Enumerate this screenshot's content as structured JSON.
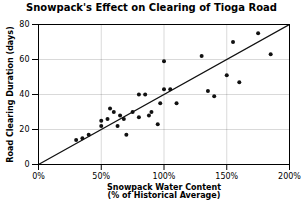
{
  "chart_data": {
    "type": "scatter",
    "title": "Snowpack's Effect on Clearing of Tioga Road",
    "xlabel": "Snowpack Water Content\n(% of Historical Average)",
    "ylabel": "Road Clearing Duration (days)",
    "series": [
      {
        "type": "scatter",
        "color": "#111111",
        "x": [
          30,
          35,
          40,
          50,
          50,
          55,
          57,
          60,
          63,
          65,
          68,
          70,
          75,
          80,
          80,
          85,
          88,
          90,
          95,
          97,
          100,
          100,
          105,
          110,
          130,
          135,
          140,
          150,
          155,
          160,
          175,
          185
        ],
        "values": [
          14,
          15,
          17,
          22,
          25,
          26,
          32,
          30,
          22,
          28,
          26,
          17,
          30,
          27,
          40,
          40,
          28,
          30,
          23,
          35,
          59,
          43,
          43,
          35,
          62,
          42,
          39,
          51,
          70,
          47,
          75,
          63
        ]
      },
      {
        "type": "line",
        "color": "#111111",
        "x": [
          0,
          200
        ],
        "values": [
          0,
          80
        ]
      }
    ],
    "xlim": [
      0,
      200
    ],
    "ylim": [
      0,
      80
    ],
    "xticks": [
      {
        "value": 0,
        "label": "0%"
      },
      {
        "value": 50,
        "label": "50%"
      },
      {
        "value": 100,
        "label": "100%"
      },
      {
        "value": 150,
        "label": "150%"
      },
      {
        "value": 200,
        "label": "200%"
      }
    ],
    "yticks": [
      0,
      20,
      40,
      60,
      80
    ],
    "grid": true
  }
}
